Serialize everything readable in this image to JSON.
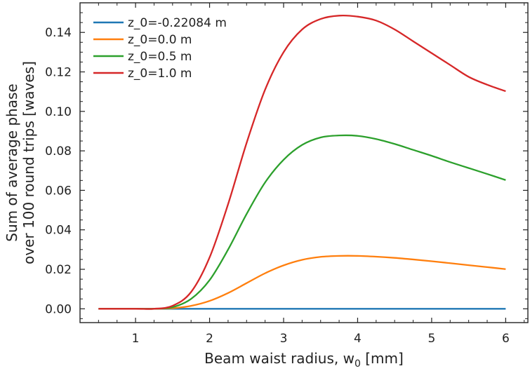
{
  "chart_data": {
    "type": "line",
    "title": "",
    "xlabel_main": "Beam waist radius, w",
    "xlabel_sub": "0",
    "xlabel_unit": " [mm]",
    "ylabel_line1": "Sum of average phase",
    "ylabel_line2": "over 100 round trips [waves]",
    "xlim": [
      0.25,
      6.3
    ],
    "ylim": [
      -0.007,
      0.155
    ],
    "xticks": [
      1,
      2,
      3,
      4,
      5,
      6
    ],
    "xtick_labels": [
      "1",
      "2",
      "3",
      "4",
      "5",
      "6"
    ],
    "yticks": [
      0.0,
      0.02,
      0.04,
      0.06,
      0.08,
      0.1,
      0.12,
      0.14
    ],
    "ytick_labels": [
      "0.00",
      "0.02",
      "0.04",
      "0.06",
      "0.08",
      "0.10",
      "0.12",
      "0.14"
    ],
    "grid": false,
    "legend_position": "top-left",
    "x": [
      0.5,
      1.0,
      1.25,
      1.5,
      1.75,
      2.0,
      2.25,
      2.5,
      2.75,
      3.0,
      3.25,
      3.5,
      3.75,
      4.0,
      4.25,
      4.5,
      4.75,
      5.0,
      5.25,
      5.5,
      5.75,
      6.0
    ],
    "series": [
      {
        "name": "z_0=-0.22084 m",
        "color": "#1f77b4",
        "values": [
          0,
          0,
          0,
          0,
          0,
          0,
          0,
          0,
          0,
          0,
          0,
          0,
          0,
          0,
          0,
          0,
          0,
          0,
          0,
          0,
          0,
          0
        ]
      },
      {
        "name": "z_0=0.0 m",
        "color": "#ff7f0e",
        "values": [
          0,
          0,
          0,
          0.0003,
          0.0015,
          0.004,
          0.008,
          0.013,
          0.018,
          0.022,
          0.0248,
          0.0263,
          0.0268,
          0.0268,
          0.0264,
          0.0258,
          0.025,
          0.0241,
          0.0231,
          0.0221,
          0.0211,
          0.0201
        ]
      },
      {
        "name": "z_0=0.5 m",
        "color": "#2ca02c",
        "values": [
          0,
          0,
          0,
          0.0008,
          0.005,
          0.0145,
          0.03,
          0.048,
          0.064,
          0.0755,
          0.083,
          0.0868,
          0.0878,
          0.0876,
          0.086,
          0.0835,
          0.0805,
          0.0775,
          0.0743,
          0.0713,
          0.0683,
          0.0652
        ]
      },
      {
        "name": "z_0=1.0 m",
        "color": "#d62728",
        "values": [
          0,
          0,
          0,
          0.0015,
          0.0085,
          0.026,
          0.053,
          0.084,
          0.111,
          0.13,
          0.1415,
          0.1468,
          0.1485,
          0.148,
          0.146,
          0.1415,
          0.1355,
          0.1295,
          0.1235,
          0.1175,
          0.1135,
          0.1102
        ]
      }
    ]
  }
}
